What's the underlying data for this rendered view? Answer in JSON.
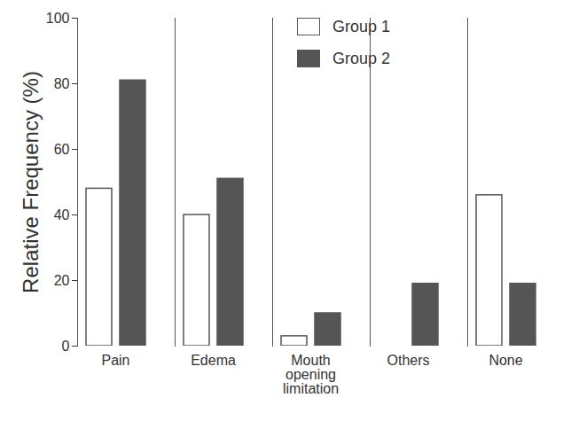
{
  "chart_data": {
    "type": "bar",
    "categories": [
      "Pain",
      "Edema",
      "Mouth opening limitation",
      "Others",
      "None"
    ],
    "series": [
      {
        "name": "Group 1",
        "color": "#ffffff",
        "values": [
          48,
          40,
          3,
          0,
          46
        ]
      },
      {
        "name": "Group 2",
        "color": "#555555",
        "values": [
          81,
          51,
          10,
          19,
          19
        ]
      }
    ],
    "y_label": "Relative Frequency (%)",
    "ylim": [
      0,
      100
    ],
    "yticks": [
      0,
      20,
      40,
      60,
      80,
      100
    ],
    "grid": false,
    "legend": "top-right"
  }
}
